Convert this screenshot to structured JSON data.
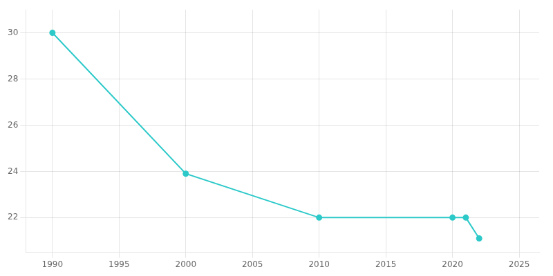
{
  "chart_data": {
    "type": "line",
    "x": [
      1990,
      2000,
      2010,
      2020,
      2021,
      2022
    ],
    "values": [
      30,
      23.9,
      22,
      22,
      22,
      21.1
    ],
    "color": "#2dc9c9",
    "marker": "circle",
    "xlim": [
      1988,
      2026.5
    ],
    "ylim": [
      20.5,
      31.0
    ],
    "xticks": [
      1990,
      1995,
      2000,
      2005,
      2010,
      2015,
      2020,
      2025
    ],
    "yticks": [
      22,
      24,
      26,
      28,
      30
    ],
    "grid": true
  }
}
